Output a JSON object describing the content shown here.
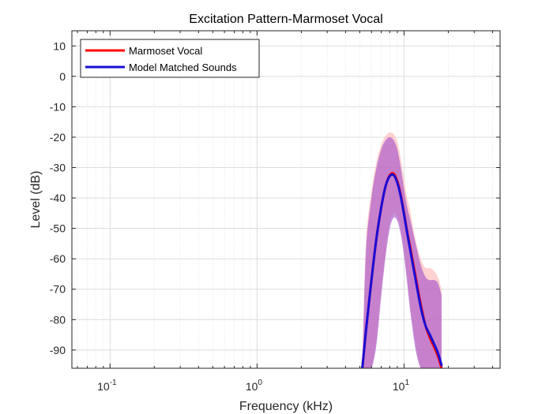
{
  "chart_data": {
    "type": "line",
    "title": "Excitation Pattern-Marmoset Vocal",
    "xlabel": "Frequency (kHz)",
    "ylabel": "Level (dB)",
    "x_scale": "log",
    "xlim": [
      0.055,
      45
    ],
    "ylim": [
      -96,
      15
    ],
    "x_ticks": [
      {
        "base": "10",
        "exp": "-1",
        "value": 0.1
      },
      {
        "base": "10",
        "exp": "0",
        "value": 1
      },
      {
        "base": "10",
        "exp": "1",
        "value": 10
      }
    ],
    "y_ticks": [
      10,
      0,
      -10,
      -20,
      -30,
      -40,
      -50,
      -60,
      -70,
      -80,
      -90
    ],
    "grid": true,
    "legend_position": "top-left",
    "series": [
      {
        "name": "Marmoset Vocal",
        "color": "#ff0000",
        "band_color": "#ffb3b3",
        "x": [
          5.2,
          5.5,
          6.0,
          6.5,
          7.0,
          7.5,
          8.0,
          8.5,
          9.0,
          9.5,
          10.0,
          10.5,
          11.0,
          12.0,
          13.0,
          14.0,
          15.0,
          16.0,
          17.0,
          18.0
        ],
        "y": [
          -96,
          -84,
          -67,
          -53,
          -43,
          -36,
          -32.5,
          -32,
          -34.5,
          -39,
          -45,
          -51,
          -56,
          -66,
          -75,
          -82,
          -86,
          -89,
          -92,
          -96
        ],
        "upper": [
          -96,
          -55,
          -38,
          -28,
          -22.5,
          -19.5,
          -18.5,
          -19,
          -21.5,
          -27,
          -34,
          -40,
          -44,
          -54,
          -60,
          -63,
          -63,
          -64,
          -66,
          -70
        ],
        "lower": [
          -96,
          -96,
          -96,
          -86,
          -70,
          -57,
          -48,
          -45,
          -46,
          -50,
          -57,
          -66,
          -75,
          -88,
          -96,
          -96,
          -96,
          -96,
          -96,
          -96
        ]
      },
      {
        "name": "Model Matched Sounds",
        "color": "#1a0dd6",
        "band_color": "#a855c9",
        "x": [
          5.2,
          5.5,
          6.0,
          6.5,
          7.0,
          7.5,
          8.0,
          8.5,
          9.0,
          9.5,
          10.0,
          10.5,
          11.0,
          12.0,
          13.0,
          14.0,
          15.0,
          16.0,
          17.0,
          18.0
        ],
        "y": [
          -96,
          -84,
          -67,
          -53,
          -43,
          -36,
          -32.8,
          -32.5,
          -35,
          -39.5,
          -45.5,
          -51.5,
          -57,
          -67,
          -76,
          -82,
          -85,
          -88,
          -91,
          -95
        ],
        "upper": [
          -96,
          -58,
          -40,
          -30,
          -24,
          -21,
          -20,
          -21,
          -24,
          -30,
          -37,
          -43,
          -47,
          -55,
          -62,
          -66,
          -67,
          -67,
          -68,
          -72
        ],
        "lower": [
          -96,
          -96,
          -96,
          -88,
          -72,
          -59,
          -50,
          -46.5,
          -47.5,
          -52,
          -59,
          -68,
          -77,
          -90,
          -96,
          -96,
          -96,
          -96,
          -96,
          -96
        ]
      }
    ]
  }
}
